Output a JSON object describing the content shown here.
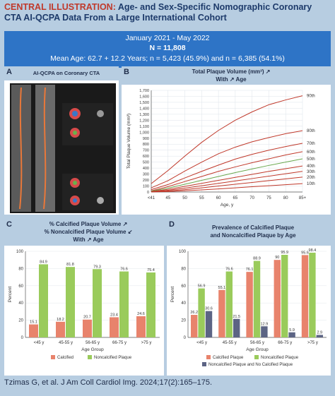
{
  "header": {
    "label": "CENTRAL ILLUSTRATION:",
    "title_line1": "Age- and Sex-Specific Nomographic Coronary",
    "title_line2": "CTA AI-QCPA Data From a Large International Cohort"
  },
  "banner": {
    "dates": "January 2021 - May 2022",
    "n": "N = 11,808",
    "stats": "Mean Age: 62.7 + 12.2 Years; n = 5,423 (45.9%) and n = 6,385 (54.1%)"
  },
  "panelA": {
    "label": "A",
    "title": "AI-QCPA on Coronary CTA"
  },
  "panelB": {
    "label": "B",
    "title_line1": "Total Plaque Volume (mm³) ↗",
    "title_line2": "With ↗ Age"
  },
  "panelC": {
    "label": "C",
    "title_line1": "% Calcified Plaque Volume ↗",
    "title_line2": "% Noncalcified Plaque Volume ↙",
    "title_line3": "With ↗ Age"
  },
  "panelD": {
    "label": "D",
    "title_line1": "Prevalence of Calcified Plaque",
    "title_line2": "and Noncalcified Plaque by Age"
  },
  "citation": "Tzimas G, et al. J Am Coll Cardiol Img. 2024;17(2):165–175.",
  "colors": {
    "calcified": "#e8836c",
    "noncalcified": "#9acb5b",
    "none": "#5c6484",
    "line_red": "#c0392b",
    "line_green": "#6aa84f",
    "banner": "#2e74c6",
    "frame": "#b7cde1"
  },
  "chart_data": [
    {
      "type": "line",
      "title": "Total Plaque Volume (mm³) ↗ With ↗ Age",
      "xlabel": "Age, y",
      "ylabel": "Total Plaque Volume (mm³)",
      "x": [
        "<41",
        "45",
        "50",
        "55",
        "60",
        "65",
        "70",
        "75",
        "80",
        "85+"
      ],
      "ylim": [
        0,
        1700
      ],
      "yticks": [
        0,
        100,
        200,
        300,
        400,
        500,
        600,
        700,
        800,
        900,
        1000,
        1100,
        1200,
        1300,
        1400,
        1500,
        1600,
        1700
      ],
      "series": [
        {
          "name": "90th",
          "values": [
            140,
            360,
            600,
            830,
            1030,
            1200,
            1340,
            1460,
            1540,
            1610
          ]
        },
        {
          "name": "80th",
          "values": [
            70,
            190,
            350,
            500,
            640,
            750,
            840,
            910,
            975,
            1025
          ]
        },
        {
          "name": "70th",
          "values": [
            40,
            125,
            235,
            345,
            450,
            550,
            630,
            700,
            760,
            815
          ]
        },
        {
          "name": "60th",
          "values": [
            20,
            90,
            175,
            260,
            345,
            420,
            490,
            555,
            620,
            675
          ]
        },
        {
          "name": "50th",
          "values": [
            15,
            65,
            130,
            195,
            260,
            325,
            385,
            445,
            500,
            555
          ]
        },
        {
          "name": "40th",
          "values": [
            8,
            45,
            95,
            145,
            195,
            245,
            295,
            345,
            390,
            435
          ]
        },
        {
          "name": "30th",
          "values": [
            4,
            30,
            65,
            105,
            145,
            185,
            225,
            265,
            305,
            345
          ]
        },
        {
          "name": "20th",
          "values": [
            2,
            18,
            40,
            70,
            100,
            130,
            160,
            190,
            220,
            250
          ]
        },
        {
          "name": "10th",
          "values": [
            1,
            8,
            20,
            35,
            52,
            70,
            88,
            105,
            123,
            140
          ]
        }
      ],
      "grid": true
    },
    {
      "type": "bar",
      "title": "% Calcified Plaque Volume ↗ % Noncalcified Plaque Volume ↙ With ↗ Age",
      "xlabel": "Age Group",
      "ylabel": "Percent",
      "categories": [
        "<45 y",
        "45-55 y",
        "56-65 y",
        "66-75 y",
        ">75 y"
      ],
      "ylim": [
        0,
        100
      ],
      "yticks": [
        0,
        20,
        40,
        60,
        80,
        100
      ],
      "series": [
        {
          "name": "Calcified",
          "values": [
            15.1,
            18.2,
            20.7,
            23.4,
            24.6
          ]
        },
        {
          "name": "Noncalcified  Plaque",
          "values": [
            84.9,
            81.8,
            79.3,
            76.6,
            75.4
          ]
        }
      ],
      "legend": "bottom"
    },
    {
      "type": "bar",
      "title": "Prevalence of Calcified Plaque and Noncalcified Plaque by Age",
      "xlabel": "Age Group",
      "ylabel": "Percent",
      "categories": [
        "<45 y",
        "45-55 y",
        "56-65 y",
        "66-75 y",
        ">75 y"
      ],
      "ylim": [
        0,
        100
      ],
      "yticks": [
        0,
        20,
        40,
        60,
        80,
        100
      ],
      "series": [
        {
          "name": "Calcified Plaque",
          "values": [
            26.2,
            55.1,
            76.1,
            90,
            95.6
          ]
        },
        {
          "name": "Noncalcified Plaque",
          "values": [
            56.9,
            76.6,
            88.9,
            95.9,
            98.4
          ]
        },
        {
          "name": "Noncalcified Plaque and No Calcified Plaque",
          "values": [
            30.6,
            21.5,
            12.9,
            5.9,
            2.9
          ]
        }
      ],
      "legend": "bottom"
    }
  ]
}
